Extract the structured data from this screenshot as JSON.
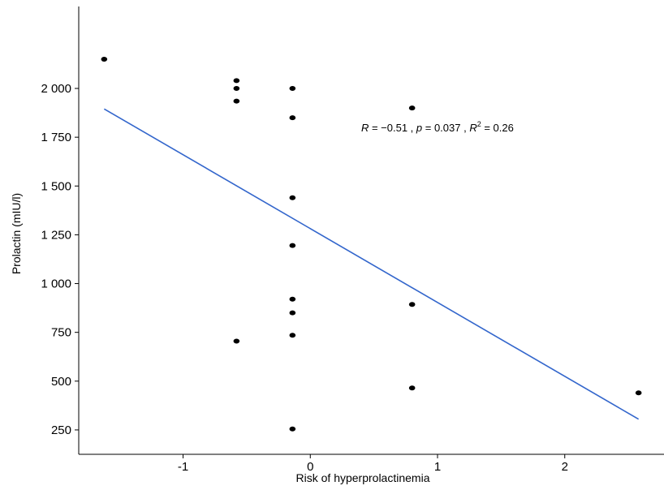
{
  "chart_data": {
    "type": "scatter",
    "xlabel": "Risk of hyperprolactinemia",
    "ylabel": "Prolactin (mIU/l)",
    "xlim": [
      -1.82,
      2.78
    ],
    "ylim": [
      125,
      2420
    ],
    "x_ticks": [
      -1,
      0,
      1,
      2
    ],
    "x_tick_labels": [
      "-1",
      "0",
      "1",
      "2"
    ],
    "y_ticks": [
      250,
      500,
      750,
      1000,
      1250,
      1500,
      1750,
      2000
    ],
    "y_tick_labels": [
      "250",
      "500",
      "750",
      "1 000",
      "1 250",
      "1 500",
      "1 750",
      "2 000"
    ],
    "grid": false,
    "points": [
      {
        "x": -1.62,
        "y": 2150
      },
      {
        "x": -0.58,
        "y": 2040
      },
      {
        "x": -0.58,
        "y": 2000
      },
      {
        "x": -0.58,
        "y": 1935
      },
      {
        "x": -0.58,
        "y": 705
      },
      {
        "x": -0.14,
        "y": 2000
      },
      {
        "x": -0.14,
        "y": 1850
      },
      {
        "x": -0.14,
        "y": 1440
      },
      {
        "x": -0.14,
        "y": 1195
      },
      {
        "x": -0.14,
        "y": 920
      },
      {
        "x": -0.14,
        "y": 850
      },
      {
        "x": -0.14,
        "y": 735
      },
      {
        "x": -0.14,
        "y": 255
      },
      {
        "x": 0.8,
        "y": 1900
      },
      {
        "x": 0.8,
        "y": 893
      },
      {
        "x": 0.8,
        "y": 465
      },
      {
        "x": 2.58,
        "y": 440
      }
    ],
    "regression_line": {
      "x": [
        -1.62,
        2.58
      ],
      "y": [
        1895,
        305
      ],
      "color": "#3366cc"
    },
    "point_color": "#000000",
    "annotation": {
      "r_symbol": "R",
      "r_text": " = −0.51 , ",
      "p_symbol": "p",
      "p_text": " = 0.037 , ",
      "r2_symbol": "R",
      "r2_sup": "2",
      "r2_text": " = 0.26",
      "x": 0.4,
      "y": 1780
    }
  }
}
